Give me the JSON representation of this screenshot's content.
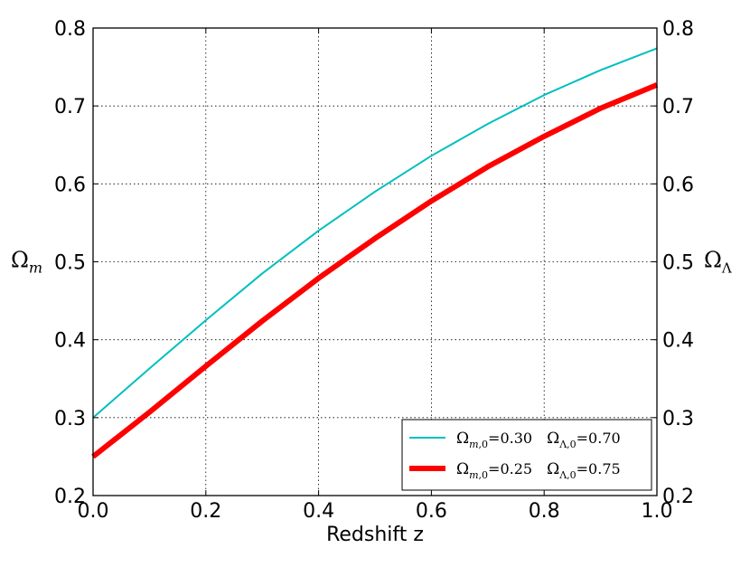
{
  "chart_data": {
    "type": "line",
    "xlabel": "Redshift z",
    "ylabel_left": "Ω_m",
    "ylabel_right": "Ω_Λ",
    "xlim": [
      0.0,
      1.0
    ],
    "ylim": [
      0.2,
      0.8
    ],
    "ylim_right": [
      0.8,
      0.2
    ],
    "grid": true,
    "legend_position": "lower-right",
    "x_ticks": [
      0.0,
      0.2,
      0.4,
      0.6,
      0.8,
      1.0
    ],
    "x_tick_labels": [
      "0.0",
      "0.2",
      "0.4",
      "0.6",
      "0.8",
      "1.0"
    ],
    "y_ticks": [
      0.2,
      0.3,
      0.4,
      0.5,
      0.6,
      0.7,
      0.8
    ],
    "y_tick_labels": [
      "0.2",
      "0.3",
      "0.4",
      "0.5",
      "0.6",
      "0.7",
      "0.8"
    ],
    "y_right_ticks": [
      0.8,
      0.7,
      0.6,
      0.5,
      0.4,
      0.3,
      0.2
    ],
    "y_right_tick_labels": [
      "0.2",
      "0.3",
      "0.4",
      "0.5",
      "0.6",
      "0.7",
      "0.8"
    ],
    "series": [
      {
        "name": "Ω_m,0 = 0.30   Ω_Λ,0 = 0.70",
        "color": "#00bfbf",
        "x": [
          0.0,
          0.1,
          0.2,
          0.3,
          0.4,
          0.5,
          0.6,
          0.7,
          0.8,
          0.9,
          1.0
        ],
        "y": [
          0.3,
          0.363,
          0.425,
          0.485,
          0.54,
          0.59,
          0.636,
          0.677,
          0.714,
          0.746,
          0.774
        ]
      },
      {
        "name": "Ω_m,0 = 0.25   Ω_Λ,0 = 0.75",
        "color": "#ff0000",
        "x": [
          0.0,
          0.1,
          0.2,
          0.3,
          0.4,
          0.5,
          0.6,
          0.7,
          0.8,
          0.9,
          1.0
        ],
        "y": [
          0.25,
          0.307,
          0.366,
          0.424,
          0.479,
          0.53,
          0.578,
          0.622,
          0.661,
          0.697,
          0.727
        ]
      }
    ]
  }
}
